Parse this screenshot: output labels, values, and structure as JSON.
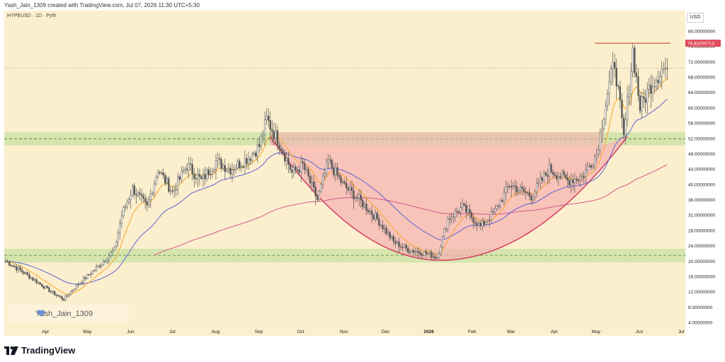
{
  "header": {
    "meta": "Yash_Jain_1309 created with TradingView.com, Jul 07, 2026 11:30 UTC+5:30",
    "symbol": "HYPEUSD · 1D · Pyth",
    "currency": "USD"
  },
  "watermark": {
    "text": "Yash_Jain_1309"
  },
  "brand": {
    "name": "TradingView"
  },
  "colors": {
    "background": "#fcefcd",
    "candle": "#555555",
    "ema_fast": "#f5a623",
    "ma_mid": "#5b63d6",
    "ma_slow": "#d6558c",
    "zone_green": "#cfe3a8",
    "cup_fill": "#f7b0b0",
    "cup_line": "#d2345e",
    "resistance": "#c0392b"
  },
  "chart_data": {
    "type": "candlestick",
    "y_axis": {
      "min": 4,
      "max": 80,
      "ticks": [
        80,
        76,
        72,
        68,
        64,
        60,
        56,
        52,
        48,
        44,
        40,
        36,
        32,
        28,
        24,
        20,
        16,
        12,
        8,
        4
      ],
      "tick_labels": [
        "80.00000000",
        "76.00000000",
        "72.00000000",
        "68.00000000",
        "64.00000000",
        "60.00000000",
        "56.00000000",
        "52.00000000",
        "48.00000000",
        "44.00000000",
        "40.00000000",
        "36.00000000",
        "32.00000000",
        "28.00000000",
        "24.00000000",
        "20.00000000",
        "16.00000000",
        "12.00000000",
        "8.00000000",
        "4.00000000"
      ]
    },
    "x_axis": {
      "labels": [
        "Apr",
        "May",
        "Jun",
        "Jul",
        "Aug",
        "Sep",
        "Oct",
        "Nov",
        "Dec",
        "2026",
        "Feb",
        "Mar",
        "Apr",
        "May",
        "Jun",
        "Jul"
      ],
      "bold": [
        "2026"
      ]
    },
    "price_badge": {
      "label": "76.83200713",
      "value": 76.832
    },
    "current_price": 70.3,
    "resistance_line": {
      "value": 76.832,
      "from_index": 325,
      "to_index": 362
    },
    "zones": [
      {
        "low": 50.2,
        "high": 53.6
      },
      {
        "low": 19.6,
        "high": 23.2
      }
    ],
    "dashed_levels": [
      51.9,
      21.5
    ],
    "cup": {
      "start_index": 146,
      "bottom_index": 240,
      "end_index": 343,
      "rim": 52.5,
      "bottom": 20.2
    },
    "cup_rect": {
      "start_index": 146,
      "end_index": 330,
      "low": 50.2,
      "high": 53.6
    },
    "anchors": [
      [
        0,
        20
      ],
      [
        10,
        17
      ],
      [
        25,
        12
      ],
      [
        32,
        10
      ],
      [
        40,
        14
      ],
      [
        52,
        19
      ],
      [
        60,
        23
      ],
      [
        64,
        32
      ],
      [
        70,
        39
      ],
      [
        78,
        34
      ],
      [
        84,
        44
      ],
      [
        92,
        38
      ],
      [
        100,
        45
      ],
      [
        108,
        41
      ],
      [
        116,
        46
      ],
      [
        124,
        44
      ],
      [
        134,
        47
      ],
      [
        140,
        50
      ],
      [
        144,
        57
      ],
      [
        152,
        50
      ],
      [
        158,
        43
      ],
      [
        164,
        45
      ],
      [
        172,
        36
      ],
      [
        178,
        46
      ],
      [
        186,
        40
      ],
      [
        195,
        36
      ],
      [
        205,
        31
      ],
      [
        214,
        25
      ],
      [
        222,
        23
      ],
      [
        232,
        22
      ],
      [
        238,
        21
      ],
      [
        244,
        31
      ],
      [
        252,
        34
      ],
      [
        262,
        29
      ],
      [
        270,
        33
      ],
      [
        278,
        40
      ],
      [
        290,
        37
      ],
      [
        300,
        44
      ],
      [
        310,
        41
      ],
      [
        318,
        42
      ],
      [
        326,
        48
      ],
      [
        332,
        64
      ],
      [
        336,
        72
      ],
      [
        341,
        52
      ],
      [
        346,
        75
      ],
      [
        350,
        60
      ],
      [
        356,
        66
      ],
      [
        362,
        70
      ],
      [
        365,
        70.3
      ]
    ]
  }
}
